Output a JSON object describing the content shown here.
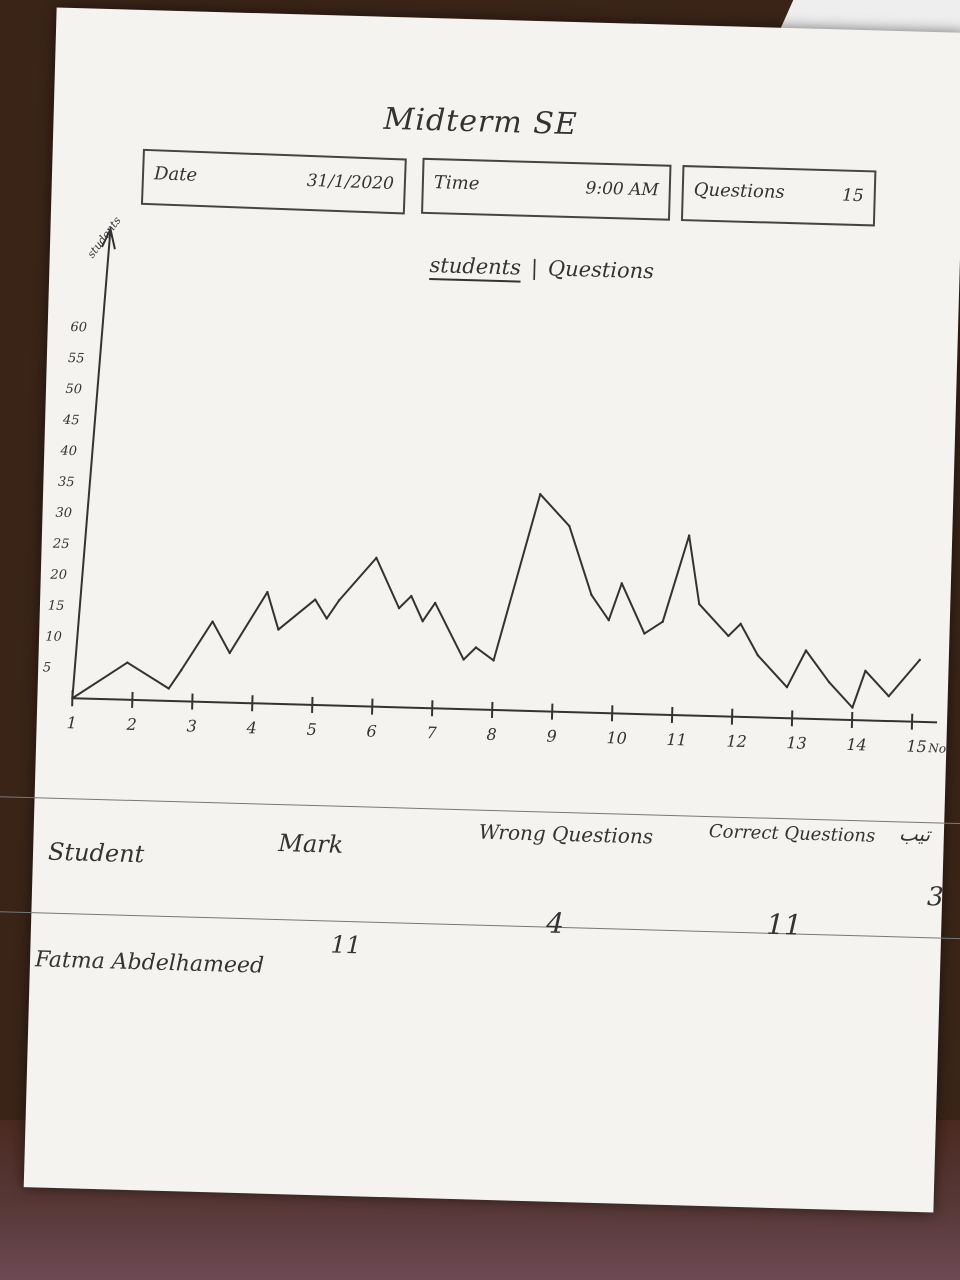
{
  "title": "Midterm SE",
  "info": {
    "date_label": "Date",
    "date_value": "31/1/2020",
    "time_label": "Time",
    "time_value": "9:00 AM",
    "questions_label": "Questions",
    "questions_value": "15"
  },
  "tabs": {
    "students": "students",
    "separator": "|",
    "questions": "Questions"
  },
  "chart_data": {
    "type": "line",
    "ylabel": "students",
    "y_ticks": [
      "5",
      "10",
      "15",
      "20",
      "25",
      "30",
      "35",
      "40",
      "45",
      "50",
      "55",
      "60"
    ],
    "x_ticks": [
      "1",
      "2",
      "3",
      "4",
      "5",
      "6",
      "7",
      "8",
      "9",
      "10",
      "11",
      "12",
      "13",
      "14",
      "15"
    ],
    "x_unit": "No",
    "x": [
      1,
      1.9,
      2.6,
      2.8,
      3.3,
      3.6,
      4.2,
      4.4,
      5.0,
      5.2,
      5.4,
      6.0,
      6.4,
      6.6,
      6.8,
      7.0,
      7.5,
      7.7,
      8.0,
      8.7,
      9.2,
      9.6,
      9.9,
      10.1,
      10.5,
      10.8,
      11.2,
      11.4,
      11.9,
      12.1,
      12.4,
      12.9,
      13.2,
      13.6,
      14.0,
      14.2,
      14.6,
      15.1
    ],
    "y": [
      0,
      6,
      2,
      5,
      13,
      8,
      18,
      12,
      17,
      14,
      17,
      24,
      16,
      18,
      14,
      17,
      8,
      10,
      8,
      35,
      30,
      19,
      15,
      21,
      13,
      15,
      29,
      18,
      13,
      15,
      10,
      5,
      11,
      6,
      2,
      8,
      4,
      10
    ],
    "ylim": [
      0,
      60
    ],
    "xlim": [
      1,
      15
    ]
  },
  "table": {
    "headers": [
      "Student",
      "Mark",
      "Wrong Questions",
      "Correct Questions"
    ],
    "extra_header": "تيب",
    "row": {
      "student": "Fatma Abdelhameed",
      "mark": "11",
      "wrong": "4",
      "correct": "11",
      "extra": "3"
    }
  },
  "colors": {
    "paper": "#f4f3f0",
    "ink": "#333333"
  }
}
